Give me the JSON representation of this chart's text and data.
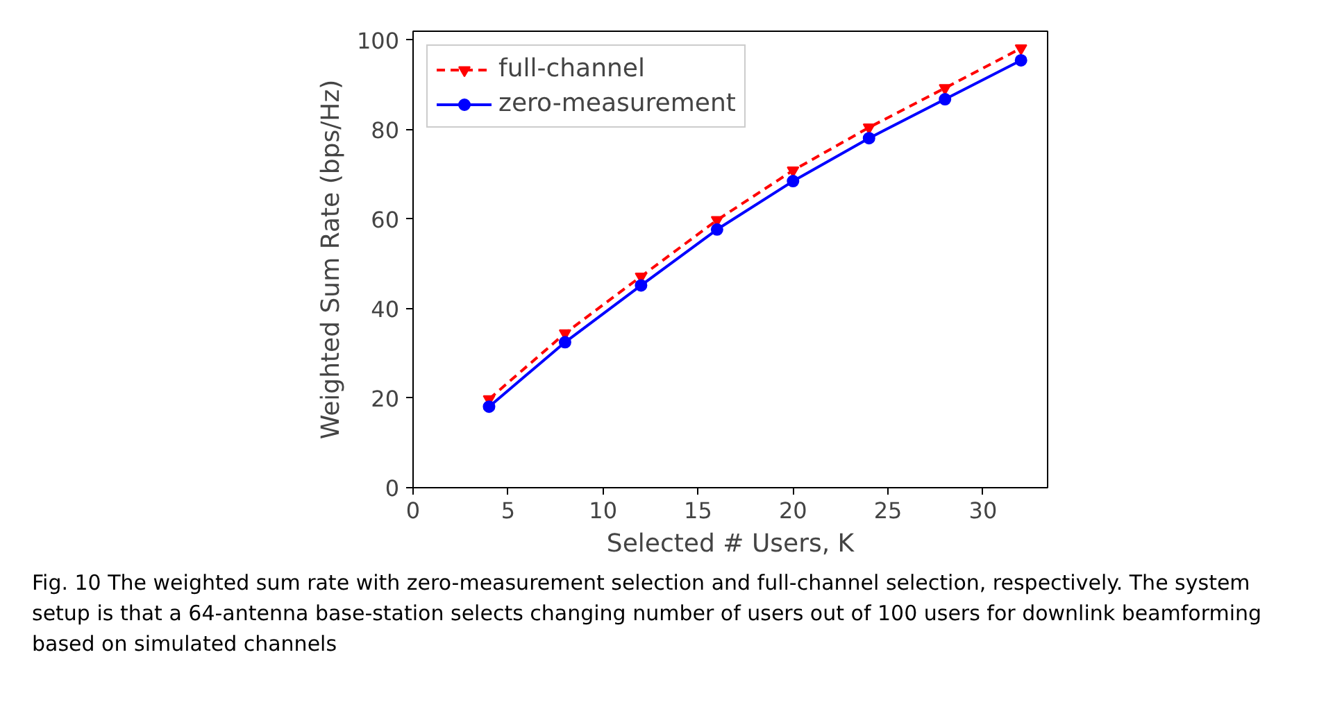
{
  "chart_data": {
    "type": "line",
    "xlabel": "Selected # Users, K",
    "ylabel": "Weighted Sum Rate (bps/Hz)",
    "x": [
      4,
      8,
      12,
      16,
      20,
      24,
      28,
      32
    ],
    "series": [
      {
        "name": "full-channel",
        "color": "#ff0000",
        "marker": "triangle",
        "line_style": "dashed",
        "values": [
          19.8,
          34.5,
          47.2,
          59.8,
          70.9,
          80.5,
          89.3,
          98.2
        ]
      },
      {
        "name": "zero-measurement",
        "color": "#0000ff",
        "marker": "circle",
        "line_style": "solid",
        "values": [
          18.1,
          32.5,
          45.2,
          57.7,
          68.5,
          78.1,
          86.8,
          95.5
        ]
      }
    ],
    "xlim": [
      0,
      33.4
    ],
    "ylim": [
      0,
      102
    ],
    "xticks": [
      0,
      5,
      10,
      15,
      20,
      25,
      30
    ],
    "yticks": [
      0,
      20,
      40,
      60,
      80,
      100
    ],
    "grid": false,
    "legend": "top left",
    "annotations": [
      "Fig. 10  The weighted sum rate with zero-measurement selection and full-channel selection, respectively. The system setup is that a 64-antenna base-station selects changing number of users out of 100 users for downlink beamforming based on simulated channels"
    ]
  }
}
